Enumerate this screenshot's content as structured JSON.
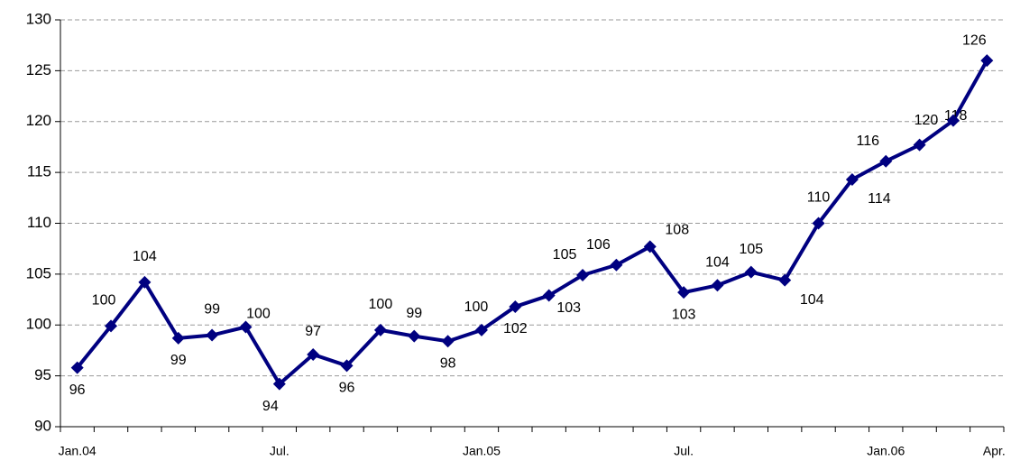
{
  "chart_data": {
    "type": "line",
    "categories": [
      "Jan.04",
      null,
      null,
      null,
      null,
      null,
      "Jul.",
      null,
      null,
      null,
      null,
      null,
      "Jan.05",
      null,
      null,
      null,
      null,
      null,
      "Jul.",
      null,
      null,
      null,
      null,
      null,
      "Jan.06",
      null,
      null,
      "Apr."
    ],
    "values": [
      95.8,
      99.9,
      104.2,
      98.7,
      99.0,
      99.8,
      94.2,
      97.1,
      96.0,
      99.5,
      98.9,
      98.4,
      99.5,
      101.8,
      102.9,
      104.9,
      105.9,
      107.7,
      103.2,
      103.9,
      105.2,
      104.4,
      110.0,
      114.3,
      116.1,
      117.7,
      120.1,
      126.0
    ],
    "value_labels": [
      "96",
      "100",
      "104",
      "99",
      "99",
      "100",
      "94",
      "97",
      "96",
      "100",
      "99",
      "98",
      "100",
      "102",
      "103",
      "105",
      "106",
      "108",
      "103",
      "104",
      "105",
      "104",
      "110",
      "114",
      "116",
      "118",
      "120",
      "126"
    ],
    "color": "#000080",
    "ylim": [
      90,
      130
    ],
    "yticks": [
      90,
      95,
      100,
      105,
      110,
      115,
      120,
      125,
      130
    ],
    "grid": true
  }
}
